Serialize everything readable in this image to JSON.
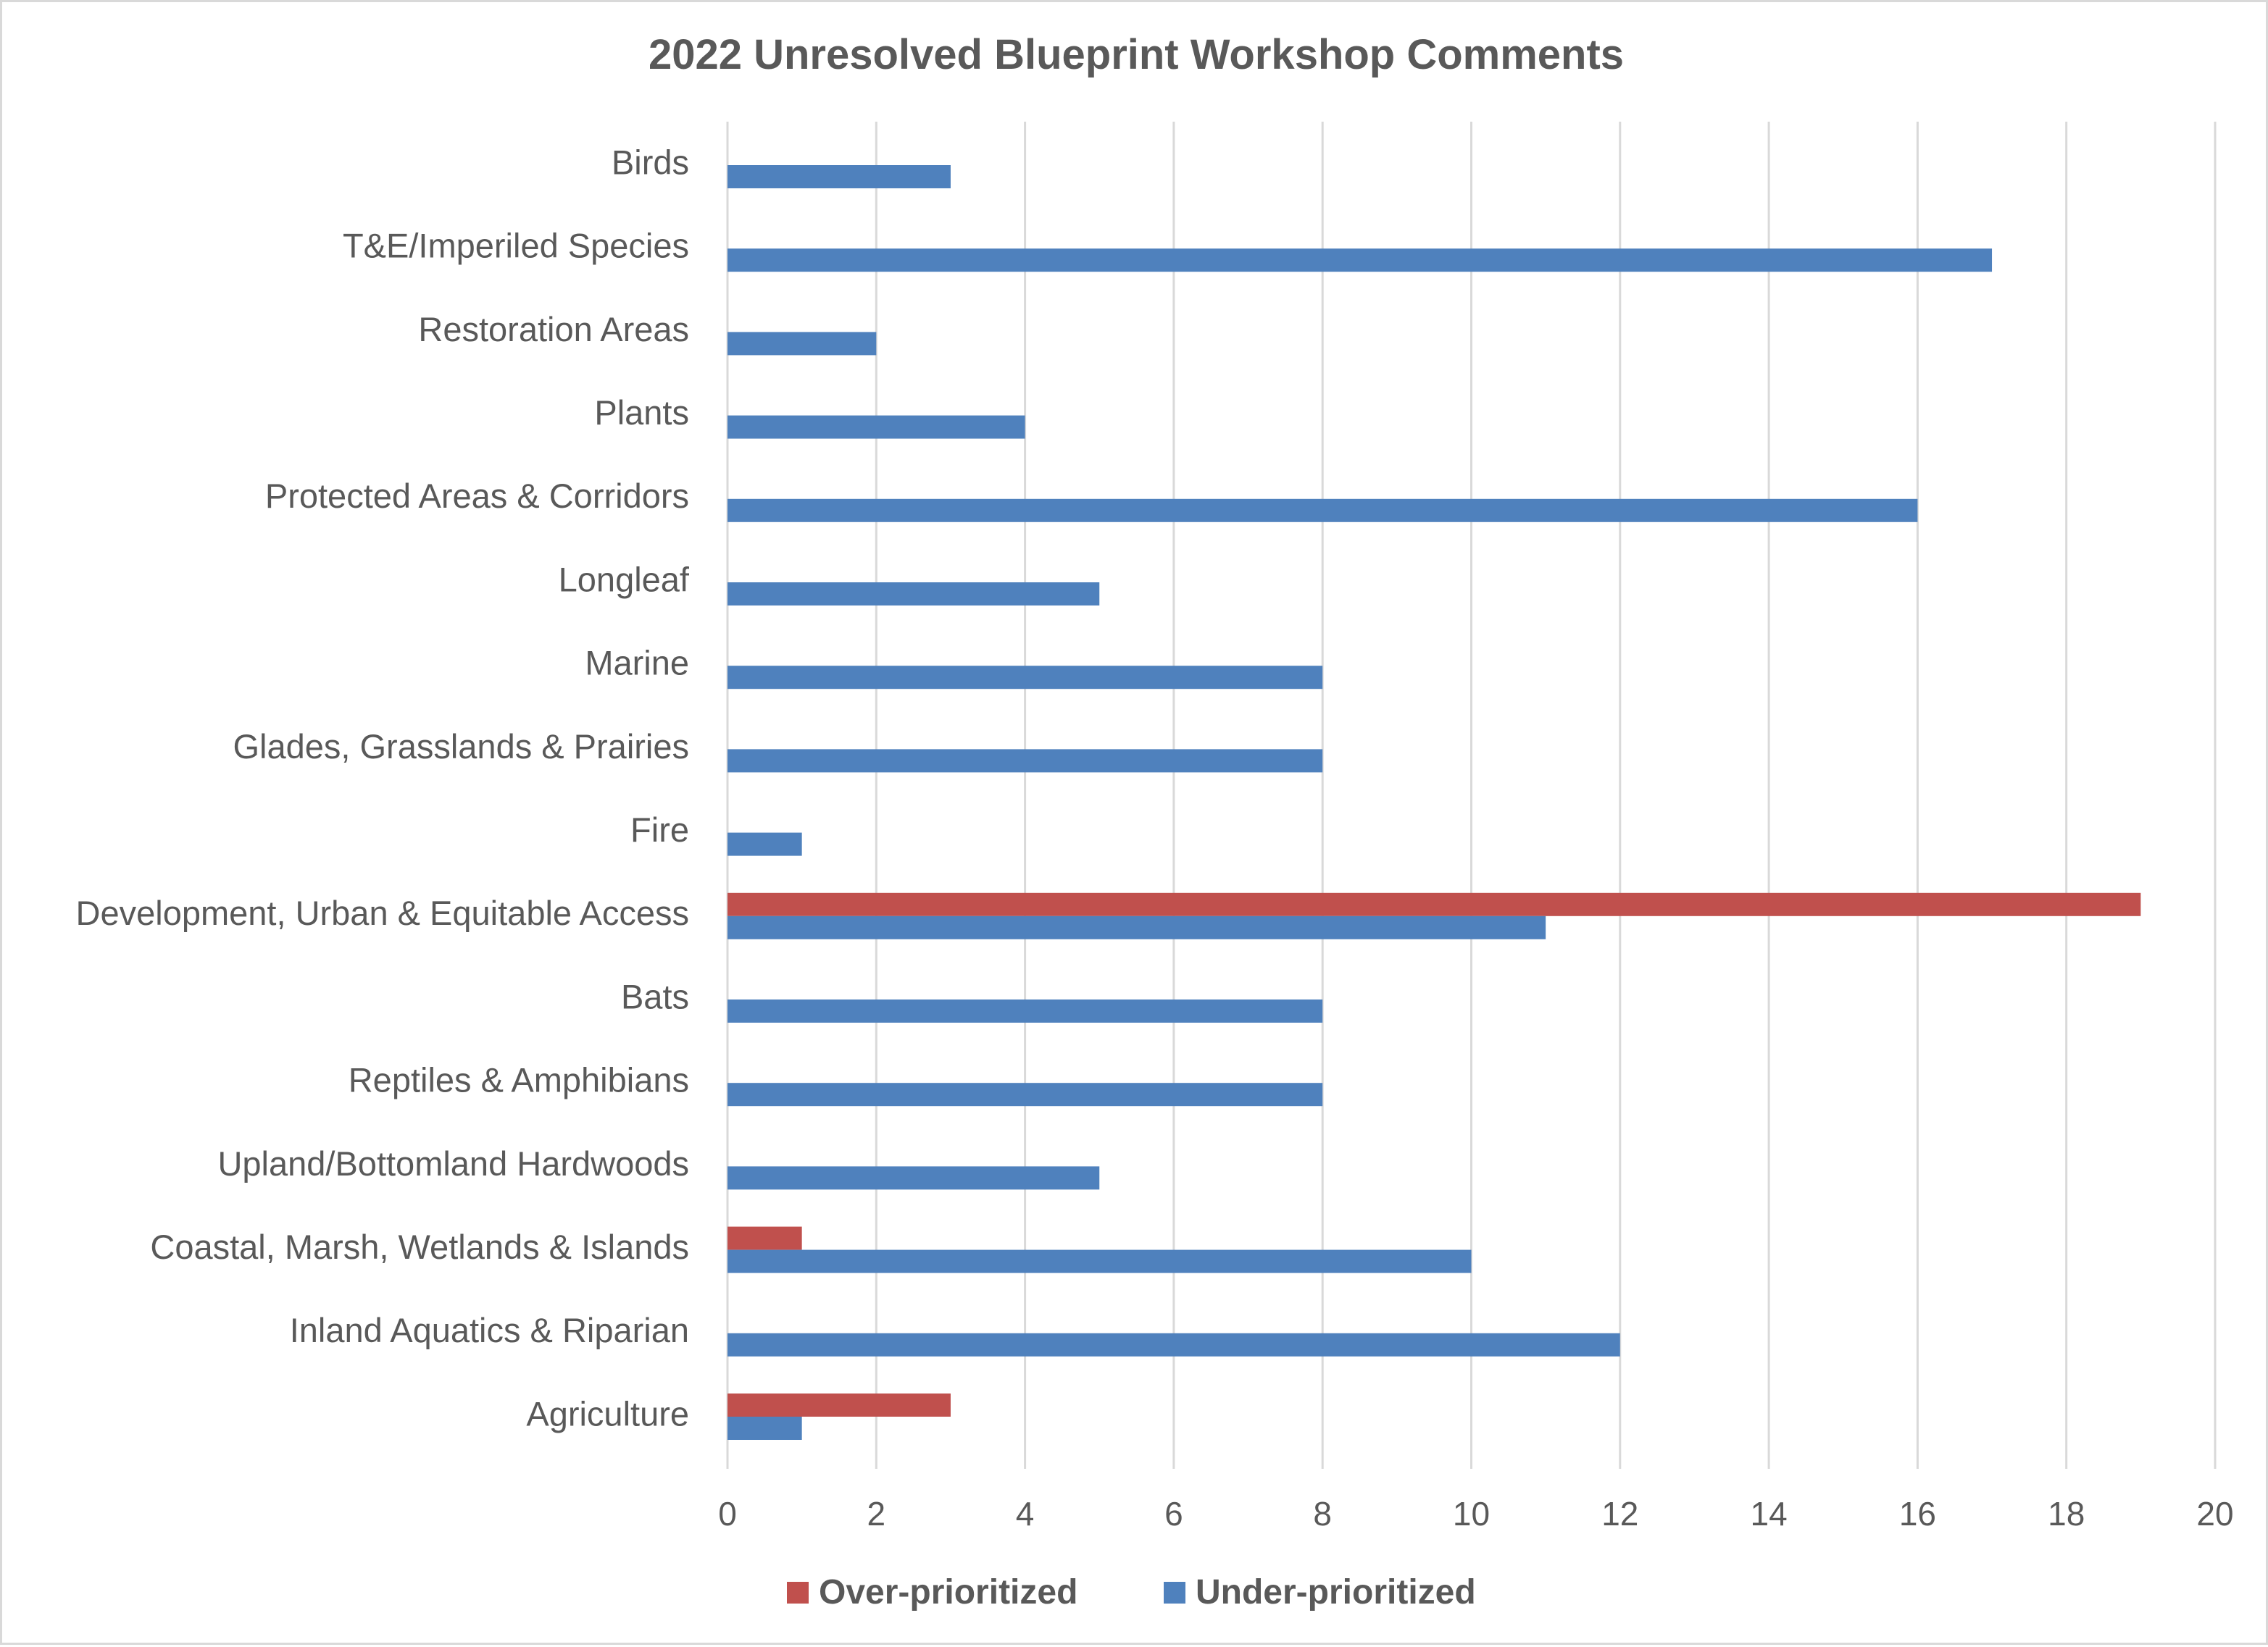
{
  "chart_data": {
    "type": "bar",
    "orientation": "horizontal",
    "title": "2022 Unresolved Blueprint Workshop Comments",
    "xlabel": "",
    "ylabel": "",
    "xlim": [
      0,
      20
    ],
    "xticks": [
      0,
      2,
      4,
      6,
      8,
      10,
      12,
      14,
      16,
      18,
      20
    ],
    "grid": "vertical",
    "legend_position": "bottom",
    "categories": [
      "Birds",
      "T&E/Imperiled Species",
      "Restoration Areas",
      "Plants",
      "Protected Areas & Corridors",
      "Longleaf",
      "Marine",
      "Glades, Grasslands & Prairies",
      "Fire",
      "Development, Urban & Equitable Access",
      "Bats",
      "Reptiles & Amphibians",
      "Upland/Bottomland Hardwoods",
      "Coastal, Marsh, Wetlands & Islands",
      "Inland Aquatics & Riparian",
      "Agriculture"
    ],
    "series": [
      {
        "name": "Over-prioritized",
        "color": "#c0504d",
        "values": [
          0,
          0,
          0,
          0,
          0,
          0,
          0,
          0,
          0,
          19,
          0,
          0,
          0,
          1,
          0,
          3
        ]
      },
      {
        "name": "Under-prioritized",
        "color": "#4f81bd",
        "values": [
          3,
          17,
          2,
          4,
          16,
          5,
          8,
          8,
          1,
          11,
          8,
          8,
          5,
          10,
          12,
          1
        ]
      }
    ]
  }
}
